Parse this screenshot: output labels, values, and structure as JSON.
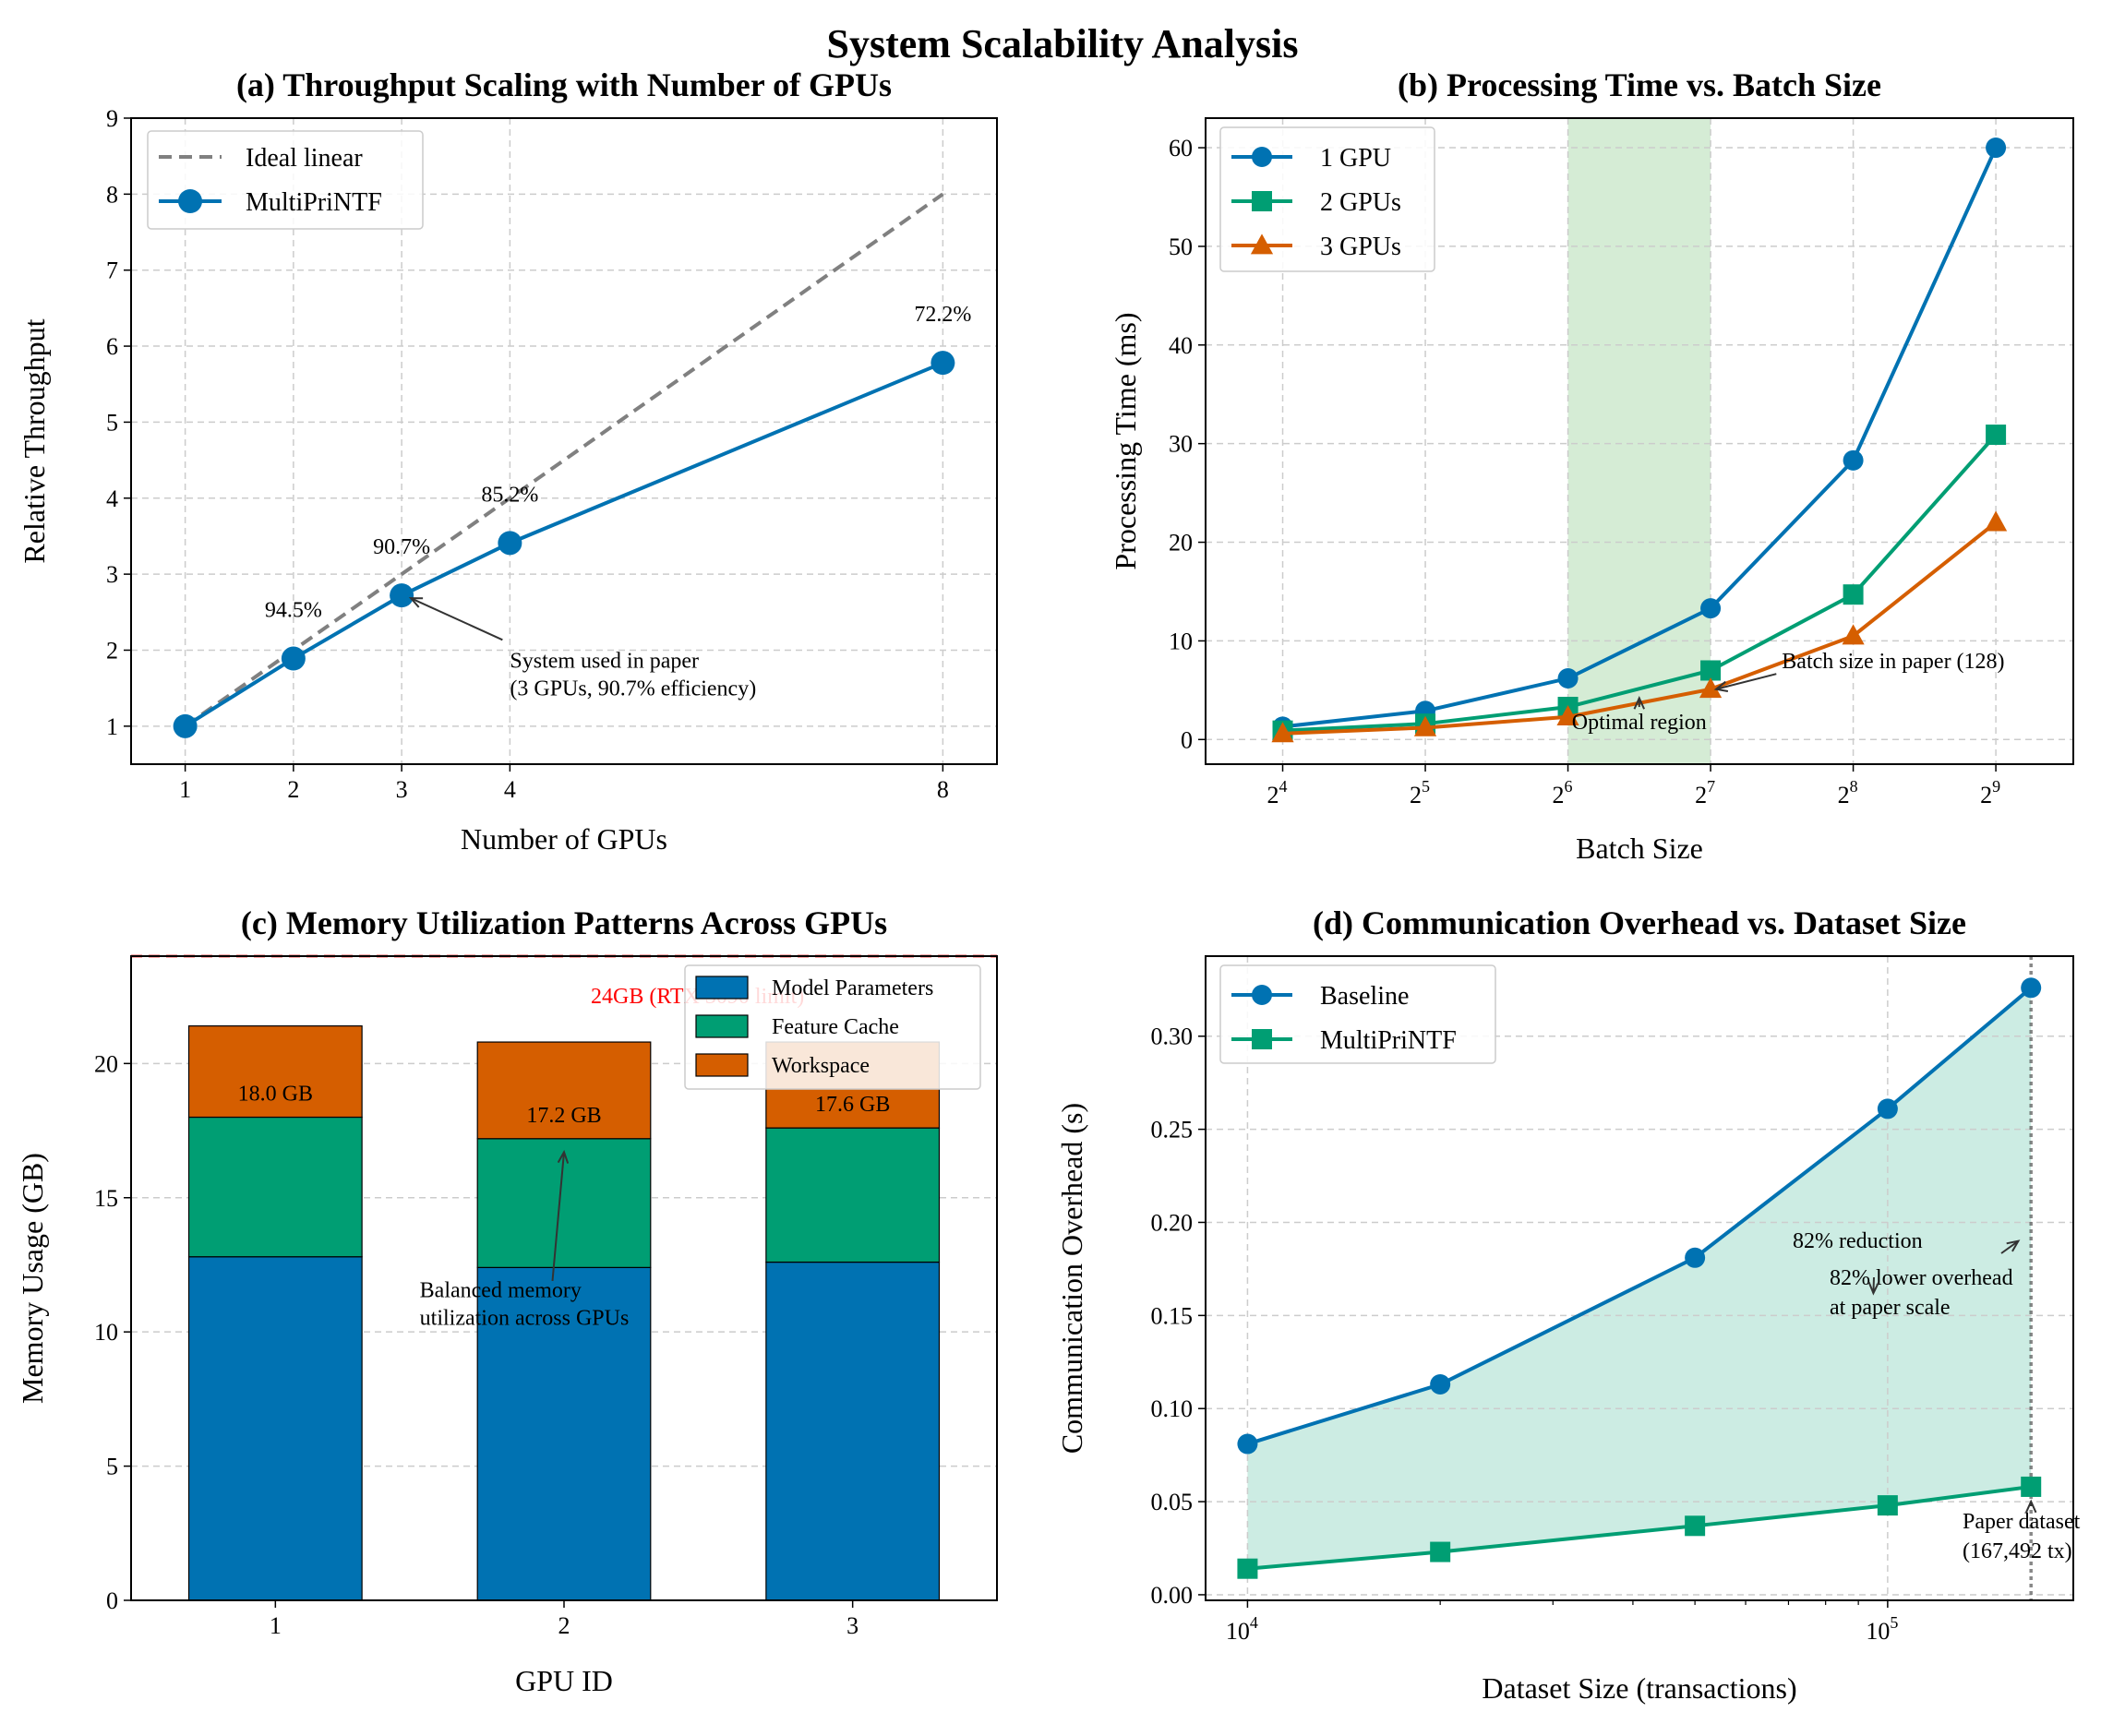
{
  "figure": {
    "suptitle": "System Scalability Analysis"
  },
  "chart_data": [
    {
      "type": "line",
      "title": "(a) Throughput Scaling with Number of GPUs",
      "xlabel": "Number of GPUs",
      "ylabel": "Relative Throughput",
      "xlim": [
        0.5,
        8.5
      ],
      "ylim": [
        0.5,
        9
      ],
      "xticks": [
        1,
        2,
        3,
        4,
        8
      ],
      "yticks": [
        1,
        2,
        3,
        4,
        5,
        6,
        7,
        8,
        9
      ],
      "grid": true,
      "legend_position": "top-left",
      "series": [
        {
          "name": "Ideal linear",
          "x": [
            1,
            8
          ],
          "y": [
            1,
            8
          ],
          "color": "#808080",
          "style": "dashed"
        },
        {
          "name": "MultiPriNTF",
          "x": [
            1,
            2,
            3,
            4,
            8
          ],
          "y": [
            1.0,
            1.89,
            2.72,
            3.41,
            5.78
          ],
          "color": "#0072B2",
          "marker": "circle"
        }
      ],
      "data_labels": [
        {
          "text": "94.5%",
          "x": 2,
          "y": 1.89
        },
        {
          "text": "90.7%",
          "x": 3,
          "y": 2.72
        },
        {
          "text": "85.2%",
          "x": 4,
          "y": 3.41
        },
        {
          "text": "72.2%",
          "x": 8,
          "y": 5.78
        }
      ],
      "annotation": {
        "lines": [
          "System used in paper",
          "(3 GPUs, 90.7% efficiency)"
        ],
        "target": {
          "x": 3,
          "y": 2.72
        },
        "text_at": {
          "x": 4.0,
          "y": 1.65
        }
      }
    },
    {
      "type": "line",
      "title": "(b) Processing Time vs. Batch Size",
      "xlabel": "Batch Size",
      "ylabel": "Processing Time (ms)",
      "xscale": "log2",
      "xlim": [
        11.0,
        746.0
      ],
      "ylim": [
        -2.5,
        63
      ],
      "xticks": [
        {
          "value": 16,
          "base": "2",
          "exp": "4"
        },
        {
          "value": 32,
          "base": "2",
          "exp": "5"
        },
        {
          "value": 64,
          "base": "2",
          "exp": "6"
        },
        {
          "value": 128,
          "base": "2",
          "exp": "7"
        },
        {
          "value": 256,
          "base": "2",
          "exp": "8"
        },
        {
          "value": 512,
          "base": "2",
          "exp": "9"
        }
      ],
      "yticks": [
        0,
        10,
        20,
        30,
        40,
        50,
        60
      ],
      "grid": true,
      "legend_position": "top-left",
      "shaded_region": {
        "x0": 64,
        "x1": 128,
        "color": "#2ca02c"
      },
      "x": [
        16,
        32,
        64,
        128,
        256,
        512
      ],
      "series": [
        {
          "name": "1 GPU",
          "y": [
            1.3,
            2.9,
            6.2,
            13.3,
            28.3,
            60.0
          ],
          "color": "#0072B2",
          "marker": "circle"
        },
        {
          "name": "2 GPUs",
          "y": [
            0.9,
            1.6,
            3.3,
            7.0,
            14.7,
            30.9
          ],
          "color": "#009E73",
          "marker": "square"
        },
        {
          "name": "3 GPUs",
          "y": [
            0.6,
            1.2,
            2.3,
            5.1,
            10.5,
            22.0
          ],
          "color": "#D55E00",
          "marker": "triangle"
        }
      ],
      "annotations": [
        {
          "text": "Batch size in paper (128)",
          "target": {
            "x": 128,
            "y": 5.1
          },
          "text_at": {
            "x": 181,
            "y": 7.4
          }
        },
        {
          "text": "Optimal region",
          "target": {
            "x": 90.5,
            "y": 4.2
          },
          "text_at": {
            "x": 90.5,
            "y": 1.8
          }
        }
      ]
    },
    {
      "type": "bar",
      "stacked": true,
      "title": "(c) Memory Utilization Patterns Across GPUs",
      "xlabel": "GPU ID",
      "ylabel": "Memory Usage (GB)",
      "categories": [
        "1",
        "2",
        "3"
      ],
      "xlim": [
        0.5,
        3.5
      ],
      "ylim": [
        0,
        24
      ],
      "yticks": [
        0,
        5,
        10,
        15,
        20
      ],
      "grid": true,
      "legend_position": "top-right",
      "series": [
        {
          "name": "Model Parameters",
          "values": [
            12.8,
            12.4,
            12.6
          ],
          "color": "#0072B2"
        },
        {
          "name": "Feature Cache",
          "values": [
            5.2,
            4.8,
            5.0
          ],
          "color": "#009E73"
        },
        {
          "name": "Workspace",
          "values": [
            3.4,
            3.6,
            3.2
          ],
          "color": "#D55E00"
        }
      ],
      "data_labels": [
        "18.0 GB",
        "17.2 GB",
        "17.6 GB"
      ],
      "reference_line": {
        "value": 24,
        "text": "24GB (RTX 3090 limit)",
        "color": "#FF0000"
      },
      "annotation": {
        "lines": [
          "Balanced memory",
          "utilization across GPUs"
        ],
        "target": {
          "x": 2.0,
          "y": 16.7
        },
        "text_at": {
          "x": 1.5,
          "y": 10.4
        }
      }
    },
    {
      "type": "line",
      "title": "(d) Communication Overhead vs. Dataset Size",
      "xlabel": "Dataset Size (transactions)",
      "ylabel": "Communication Overhead (s)",
      "xscale": "log10",
      "xlim": [
        8600,
        195000
      ],
      "ylim": [
        -0.003,
        0.343
      ],
      "xticks": [
        {
          "value": 10000,
          "base": "10",
          "exp": "4"
        },
        {
          "value": 100000,
          "base": "10",
          "exp": "5"
        }
      ],
      "yticks": [
        "0.00",
        "0.05",
        "0.10",
        "0.15",
        "0.20",
        "0.25",
        "0.30"
      ],
      "grid": true,
      "legend_position": "top-left",
      "x": [
        10000,
        20000,
        50000,
        100000,
        167492
      ],
      "series": [
        {
          "name": "Baseline",
          "y": [
            0.081,
            0.113,
            0.181,
            0.261,
            0.326
          ],
          "color": "#0072B2",
          "marker": "circle"
        },
        {
          "name": "MultiPriNTF",
          "y": [
            0.014,
            0.023,
            0.037,
            0.048,
            0.058
          ],
          "color": "#009E73",
          "marker": "square"
        }
      ],
      "fill_between": {
        "color": "#009E73"
      },
      "vertical_line": {
        "x": 167492,
        "color": "#555555"
      },
      "annotations": [
        {
          "lines": [
            "82% reduction"
          ],
          "arrow_end": {
            "x": 160000,
            "y": 0.19
          }
        },
        {
          "lines": [
            "82% lower overhead",
            "at paper scale"
          ],
          "arrow_to": {
            "x": 95000,
            "y": 0.162
          }
        },
        {
          "lines": [
            "Paper dataset",
            "(167,492 tx)"
          ],
          "arrow_to": {
            "x": 167492,
            "y": 0.058
          }
        }
      ]
    }
  ]
}
